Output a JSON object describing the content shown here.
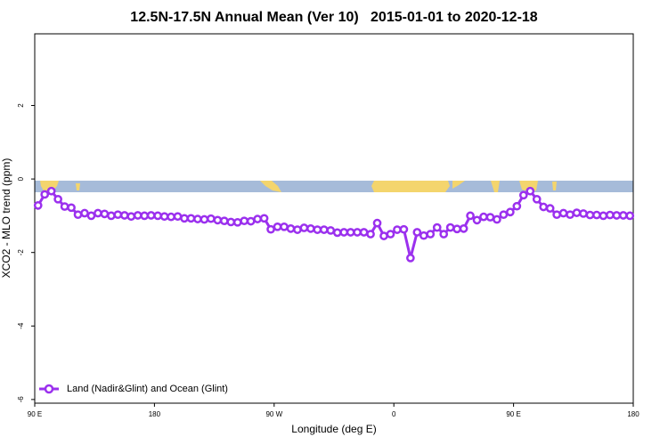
{
  "chart_data": {
    "type": "line",
    "title": "12.5N-17.5N Annual Mean (Ver 10)   2015-01-01 to 2020-12-18",
    "x_label": "Longitude (deg E)",
    "y_label": "XCO2 - MLO trend (ppm)",
    "xlim": [
      90,
      540
    ],
    "xticks": [
      {
        "value": 90,
        "label": "90 E"
      },
      {
        "value": 180,
        "label": "180"
      },
      {
        "value": 270,
        "label": "90 W"
      },
      {
        "value": 360,
        "label": "0"
      },
      {
        "value": 450,
        "label": "90 E"
      },
      {
        "value": 540,
        "label": "180"
      }
    ],
    "ylim": [
      -6.1,
      3.95
    ],
    "yticks": [
      -6,
      -4,
      -2,
      0,
      2
    ],
    "legend": "bottom-left",
    "x": [
      92.5,
      97.5,
      102.5,
      107.5,
      112.5,
      117.5,
      122.5,
      127.5,
      132.5,
      137.5,
      142.5,
      147.5,
      152.5,
      157.5,
      162.5,
      167.5,
      172.5,
      177.5,
      182.5,
      187.5,
      192.5,
      197.5,
      202.5,
      207.5,
      212.5,
      217.5,
      222.5,
      227.5,
      232.5,
      237.5,
      242.5,
      247.5,
      252.5,
      257.5,
      262.5,
      267.5,
      272.5,
      277.5,
      282.5,
      287.5,
      292.5,
      297.5,
      302.5,
      307.5,
      312.5,
      317.5,
      322.5,
      327.5,
      332.5,
      337.5,
      342.5,
      347.5,
      352.5,
      357.5,
      362.5,
      367.5,
      372.5,
      377.5,
      382.5,
      387.5,
      392.5,
      397.5,
      402.5,
      407.5,
      412.5,
      417.5,
      422.5,
      427.5,
      432.5,
      437.5,
      442.5,
      447.5,
      452.5,
      457.5,
      462.5,
      467.5,
      472.5,
      477.5,
      482.5,
      487.5,
      492.5,
      497.5,
      502.5,
      507.5,
      512.5,
      517.5,
      522.5,
      527.5,
      532.5,
      537.5
    ],
    "series": [
      {
        "name": "Land (Nadir&Glint) and Ocean (Glint)",
        "color": "#9b30ee",
        "values": [
          -0.72,
          -0.42,
          -0.33,
          -0.55,
          -0.75,
          -0.78,
          -0.97,
          -0.93,
          -1.0,
          -0.93,
          -0.95,
          -1.0,
          -0.97,
          -0.99,
          -1.02,
          -0.99,
          -1.0,
          -0.99,
          -1.0,
          -1.02,
          -1.03,
          -1.02,
          -1.07,
          -1.07,
          -1.09,
          -1.1,
          -1.08,
          -1.12,
          -1.14,
          -1.17,
          -1.18,
          -1.14,
          -1.15,
          -1.09,
          -1.07,
          -1.37,
          -1.3,
          -1.3,
          -1.35,
          -1.38,
          -1.33,
          -1.35,
          -1.38,
          -1.38,
          -1.4,
          -1.46,
          -1.45,
          -1.45,
          -1.45,
          -1.45,
          -1.5,
          -1.2,
          -1.55,
          -1.5,
          -1.38,
          -1.37,
          -2.15,
          -1.45,
          -1.54,
          -1.5,
          -1.32,
          -1.5,
          -1.32,
          -1.36,
          -1.35,
          -1.0,
          -1.12,
          -1.03,
          -1.04,
          -1.1,
          -0.97,
          -0.9,
          -0.74,
          -0.44,
          -0.33,
          -0.55,
          -0.76,
          -0.8,
          -0.97,
          -0.93,
          -0.97,
          -0.92,
          -0.94,
          -0.98,
          -0.98,
          -1.0,
          -0.98,
          -0.99,
          -0.99,
          -1.0
        ]
      }
    ]
  }
}
